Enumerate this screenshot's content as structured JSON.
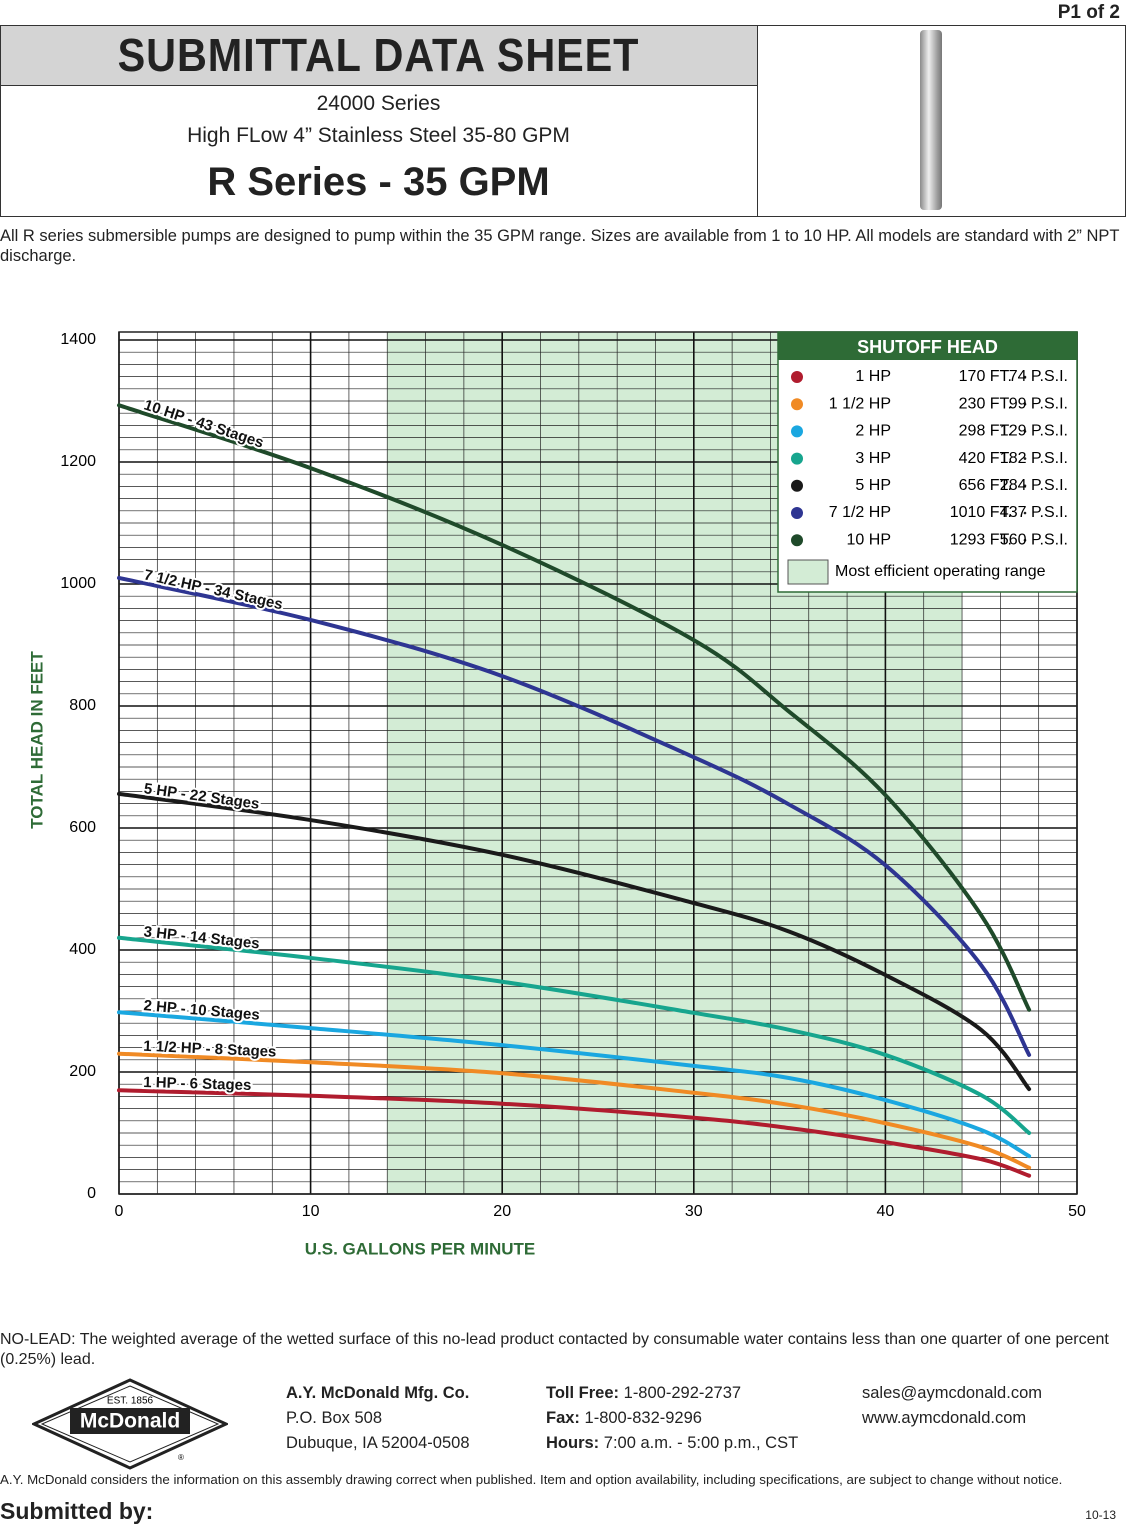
{
  "page_label": "P1 of 2",
  "header": {
    "title": "SUBMITTAL DATA SHEET",
    "series": "24000 Series",
    "description": "High FLow 4” Stainless Steel 35-80 GPM",
    "model": "R Series - 35 GPM"
  },
  "intro": "All R series submersible pumps are designed to pump within the 35 GPM range. Sizes are available from 1 to 10 HP. All models are standard with 2” NPT discharge.",
  "chart_data": {
    "type": "line",
    "x_label": "U.S. GALLONS PER MINUTE",
    "y_label": "TOTAL HEAD IN FEET",
    "xlim": [
      0,
      50
    ],
    "ylim": [
      0,
      1400
    ],
    "xticks": [
      0,
      10,
      20,
      30,
      40,
      50
    ],
    "yticks": [
      0,
      200,
      400,
      600,
      800,
      1000,
      1200,
      1400
    ],
    "grid": true,
    "minor_grid": {
      "x": 2,
      "y": 20
    },
    "efficient_range": [
      14,
      44
    ],
    "efficient_range_label": "Most efficient operating range",
    "efficient_range_color": "#d3ecd5",
    "legend_title": "SHUTOFF HEAD",
    "legend_position": "top-right",
    "x": [
      0,
      10,
      20,
      30,
      35,
      40,
      45,
      47.5
    ],
    "series": [
      {
        "name": "1 HP",
        "label": "1 HP - 6 Stages",
        "shutoff_head": "170 FT.",
        "shutoff_pressure": "74 P.S.I.",
        "color": "#b01c2e",
        "values": [
          170,
          161,
          148,
          125,
          108,
          85,
          57,
          30
        ]
      },
      {
        "name": "1 1/2 HP",
        "label": "1 1/2 HP - 8 Stages",
        "shutoff_head": "230 FT.",
        "shutoff_pressure": "99 P.S.I.",
        "color": "#f08a24",
        "values": [
          230,
          216,
          198,
          166,
          146,
          116,
          77,
          43
        ]
      },
      {
        "name": "2 HP",
        "label": "2 HP - 10 Stages",
        "shutoff_head": "298 FT.",
        "shutoff_pressure": "129 P.S.I.",
        "color": "#1aa7e0",
        "values": [
          298,
          272,
          244,
          210,
          190,
          154,
          105,
          62
        ]
      },
      {
        "name": "3 HP",
        "label": "3 HP - 14 Stages",
        "shutoff_head": "420 FT.",
        "shutoff_pressure": "182 P.S.I.",
        "color": "#17a58e",
        "values": [
          420,
          387,
          348,
          297,
          269,
          228,
          162,
          100
        ]
      },
      {
        "name": "5 HP",
        "label": "5 HP - 22 Stages",
        "shutoff_head": "656 FT.",
        "shutoff_pressure": "284 P.S.I.",
        "color": "#1a1a1a",
        "values": [
          656,
          613,
          556,
          477,
          430,
          359,
          269,
          172
        ]
      },
      {
        "name": "7 1/2 HP",
        "label": "7 1/2 HP - 34 Stages",
        "shutoff_head": "1010 FT.",
        "shutoff_pressure": "437 P.S.I.",
        "color": "#2e3592",
        "values": [
          1010,
          941,
          849,
          716,
          638,
          539,
          375,
          228
        ]
      },
      {
        "name": "10 HP",
        "label": "10 HP - 43 Stages",
        "shutoff_head": "1293 FT.",
        "shutoff_pressure": "560 P.S.I.",
        "color": "#1f4a2a",
        "values": [
          1293,
          1190,
          1064,
          908,
          790,
          654,
          457,
          302
        ]
      }
    ]
  },
  "note": "NO-LEAD: The weighted average of the wetted surface of this no-lead product contacted by consumable water contains less than one quarter of one percent (0.25%) lead.",
  "logo": {
    "est": "EST. 1856",
    "name": "McDonald",
    "mark": "®"
  },
  "company": {
    "name": "A.Y. McDonald Mfg. Co.",
    "address": "P.O. Box 508",
    "city": "Dubuque, IA 52004-0508"
  },
  "contact": {
    "toll_free_label": "Toll Free:",
    "toll_free": "1-800-292-2737",
    "fax_label": "Fax:",
    "fax": "1-800-832-9296",
    "hours_label": "Hours:",
    "hours": "7:00 a.m. - 5:00 p.m., CST",
    "email": "sales@aymcdonald.com",
    "web": "www.aymcdonald.com"
  },
  "disclaimer": "A.Y. McDonald considers the information on this assembly drawing correct when published. Item and option availability, including specifications, are subject to change without notice.",
  "submitted_by": "Submitted by:",
  "revision": "10-13"
}
